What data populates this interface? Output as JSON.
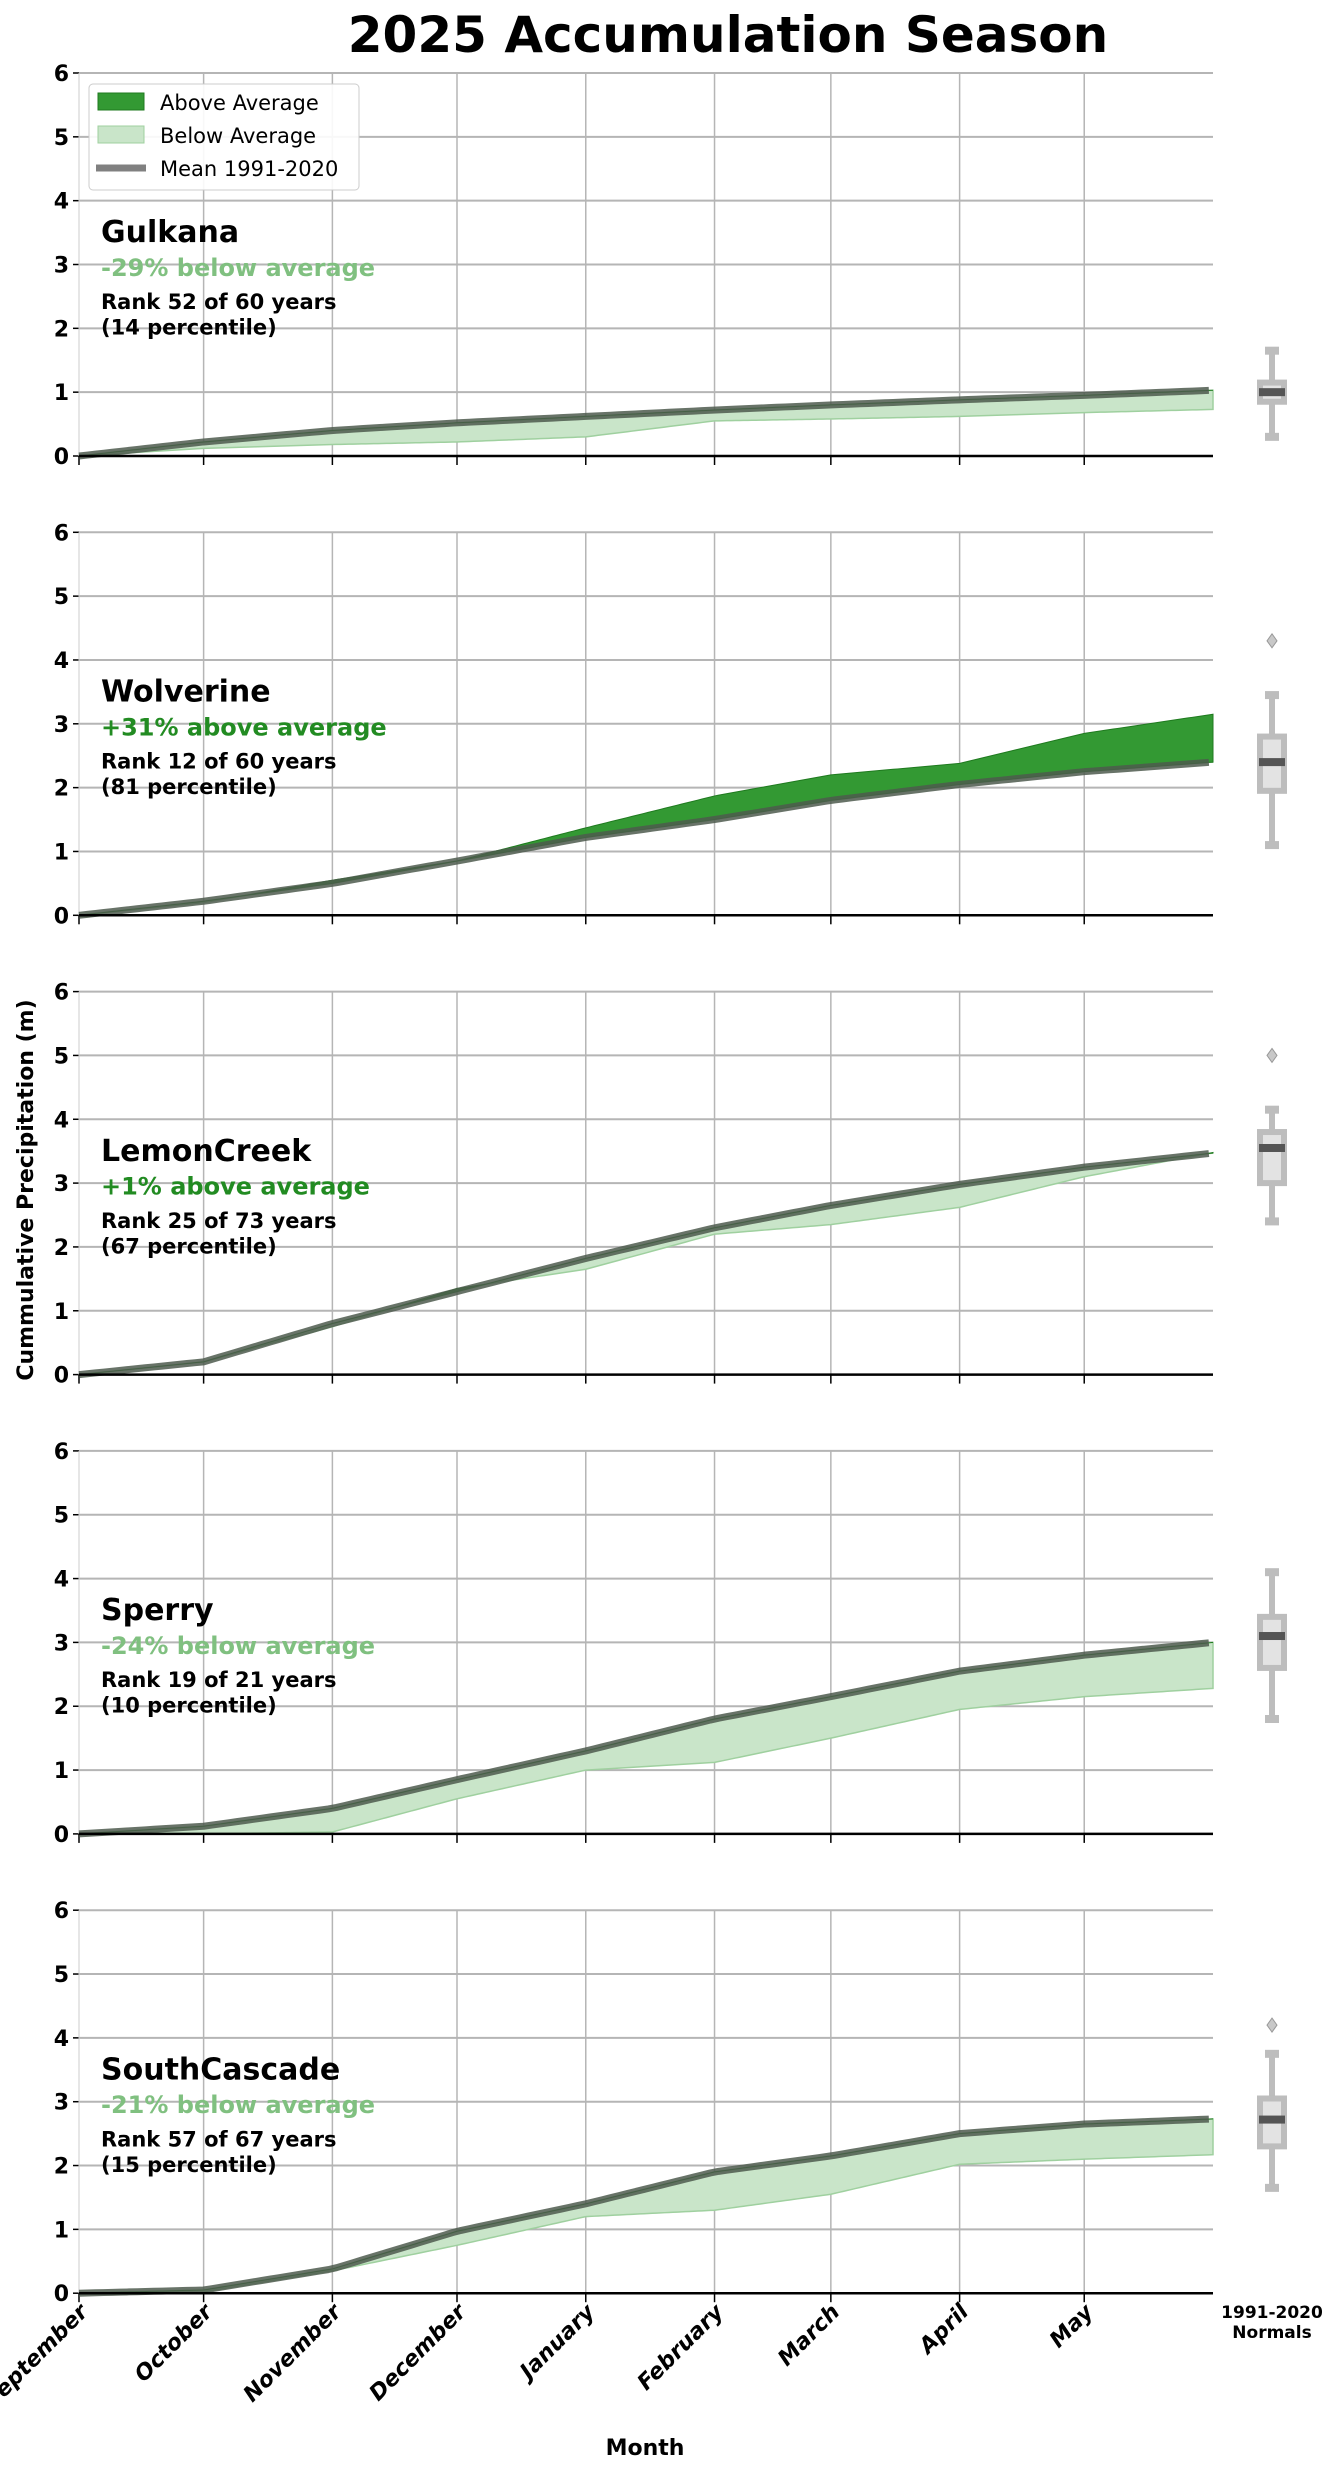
{
  "chart_data": {
    "type": "area",
    "title": "2025 Accumulation Season",
    "xlabel": "Month",
    "ylabel": "Cummulative Precipitation (m)",
    "ylim": [
      0,
      6
    ],
    "yticks": [
      "0",
      "1",
      "2",
      "3",
      "4",
      "5",
      "6"
    ],
    "xticks": [
      "September",
      "October",
      "November",
      "December",
      "January",
      "February",
      "March",
      "April",
      "May"
    ],
    "grid": true,
    "legend": {
      "placement": "top-left",
      "entries": [
        "Above Average",
        "Below Average",
        "Mean 1991-2020"
      ]
    },
    "boxplot_label": "1991-2020\nNormals",
    "boxplot_label_lines": [
      "1991-2020",
      "Normals"
    ],
    "colors": {
      "above": "#339933",
      "below": "#c9e5c9",
      "below_edge": "#9fd09f",
      "mean": "#5a5a5a",
      "above_text": "#228b22",
      "below_text": "#80c080",
      "box": "#bdbdbd",
      "median": "#555555"
    },
    "dates": [
      "2024-09-01",
      "2024-10-01",
      "2024-11-01",
      "2024-12-01",
      "2025-01-01",
      "2025-02-01",
      "2025-03-01",
      "2025-04-01",
      "2025-05-01",
      "2025-06-01"
    ],
    "panels": [
      {
        "name": "Gulkana",
        "stat": "-29% below average",
        "anomaly": "below",
        "rank": "Rank 52 of 60 years",
        "percentile": "(14 percentile)",
        "mean": [
          0,
          0.22,
          0.4,
          0.52,
          0.62,
          0.72,
          0.8,
          0.88,
          0.95,
          1.03
        ],
        "observed": [
          0,
          0.12,
          0.18,
          0.22,
          0.3,
          0.55,
          0.58,
          0.62,
          0.68,
          0.73
        ],
        "normals": {
          "whisker_low": 0.3,
          "q1": 0.85,
          "median": 1.0,
          "q3": 1.15,
          "whisker_high": 1.65,
          "outliers": []
        }
      },
      {
        "name": "Wolverine",
        "stat": "+31% above average",
        "anomaly": "above",
        "rank": "Rank 12 of 60 years",
        "percentile": "(81 percentile)",
        "mean": [
          0,
          0.22,
          0.5,
          0.85,
          1.22,
          1.5,
          1.8,
          2.05,
          2.25,
          2.4
        ],
        "observed": [
          0,
          0.2,
          0.55,
          0.85,
          1.37,
          1.87,
          2.2,
          2.38,
          2.85,
          3.15
        ],
        "normals": {
          "whisker_low": 1.1,
          "q1": 1.95,
          "median": 2.4,
          "q3": 2.8,
          "whisker_high": 3.45,
          "outliers": [
            4.3
          ]
        }
      },
      {
        "name": "LemonCreek",
        "stat": "+1% above average",
        "anomaly": "above",
        "rank": "Rank 25 of 73 years",
        "percentile": "(67 percentile)",
        "mean": [
          0,
          0.2,
          0.8,
          1.3,
          1.82,
          2.3,
          2.65,
          2.98,
          3.25,
          3.47
        ],
        "observed": [
          0,
          0.2,
          0.75,
          1.35,
          1.65,
          2.2,
          2.35,
          2.62,
          3.1,
          3.48
        ],
        "normals": {
          "whisker_low": 2.4,
          "q1": 3.0,
          "median": 3.55,
          "q3": 3.8,
          "whisker_high": 4.15,
          "outliers": [
            5.0
          ]
        }
      },
      {
        "name": "Sperry",
        "stat": "-24% below average",
        "anomaly": "below",
        "rank": "Rank 19 of 21 years",
        "percentile": "(10 percentile)",
        "mean": [
          0,
          0.12,
          0.4,
          0.85,
          1.3,
          1.8,
          2.15,
          2.55,
          2.8,
          3.0
        ],
        "observed": [
          0,
          0.0,
          0.03,
          0.55,
          1.0,
          1.12,
          1.5,
          1.95,
          2.15,
          2.28
        ],
        "normals": {
          "whisker_low": 1.8,
          "q1": 2.6,
          "median": 3.1,
          "q3": 3.4,
          "whisker_high": 4.1,
          "outliers": []
        }
      },
      {
        "name": "SouthCascade",
        "stat": "-21% below average",
        "anomaly": "below",
        "rank": "Rank 57 of 67 years",
        "percentile": "(15 percentile)",
        "mean": [
          0,
          0.05,
          0.38,
          0.97,
          1.4,
          1.9,
          2.15,
          2.5,
          2.65,
          2.73
        ],
        "observed": [
          0,
          0.02,
          0.35,
          0.75,
          1.2,
          1.3,
          1.55,
          2.02,
          2.1,
          2.17
        ],
        "normals": {
          "whisker_low": 1.65,
          "q1": 2.3,
          "median": 2.72,
          "q3": 3.05,
          "whisker_high": 3.75,
          "outliers": [
            4.2
          ]
        }
      }
    ]
  }
}
